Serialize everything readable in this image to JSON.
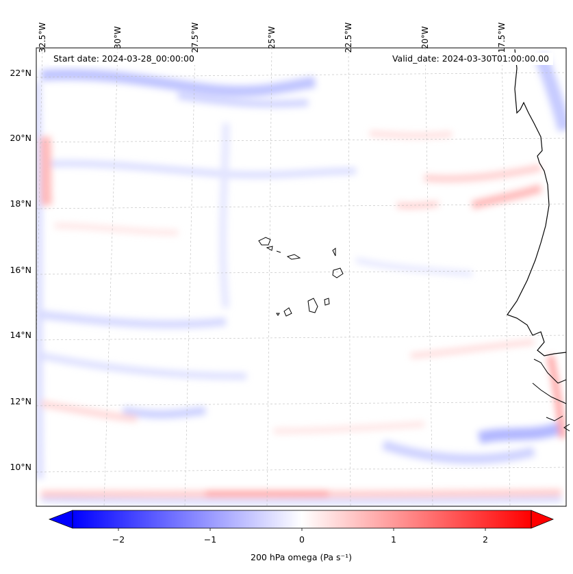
{
  "map": {
    "start_label": "Start date: 2024-03-28_00:00:00",
    "valid_label": "Valid_date: 2024-03-30T01:00:00.00",
    "lon_ticks": [
      "32.5°W",
      "30°W",
      "27.5°W",
      "25°W",
      "22.5°W",
      "20°W",
      "17.5°W"
    ],
    "lat_ticks": [
      "22°N",
      "20°N",
      "18°N",
      "16°N",
      "14°N",
      "12°N",
      "10°N"
    ],
    "extent": {
      "lon_min": -32.6,
      "lon_max": -15.6,
      "lat_min": 8.9,
      "lat_max": 22.8
    },
    "colors": {
      "negative": "#0000ff",
      "zero": "#ffffff",
      "positive": "#ff0000",
      "coastline": "#000000"
    }
  },
  "colorbar": {
    "label": "200 hPa omega (Pa s⁻¹)",
    "ticks": [
      "−2",
      "−1",
      "0",
      "1",
      "2"
    ],
    "tick_values": [
      -2,
      -1,
      0,
      1,
      2
    ],
    "range": [
      -2.5,
      2.5
    ]
  }
}
